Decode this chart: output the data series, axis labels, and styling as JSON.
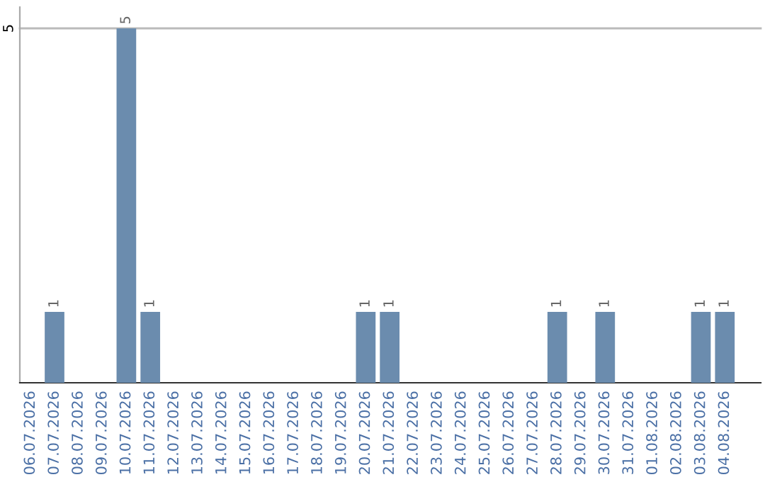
{
  "chart_data": {
    "type": "bar",
    "categories": [
      "06.07.2026",
      "07.07.2026",
      "08.07.2026",
      "09.07.2026",
      "10.07.2026",
      "11.07.2026",
      "12.07.2026",
      "13.07.2026",
      "14.07.2026",
      "15.07.2026",
      "16.07.2026",
      "17.07.2026",
      "18.07.2026",
      "19.07.2026",
      "20.07.2026",
      "21.07.2026",
      "22.07.2026",
      "23.07.2026",
      "24.07.2026",
      "25.07.2026",
      "26.07.2026",
      "27.07.2026",
      "28.07.2026",
      "29.07.2026",
      "30.07.2026",
      "31.07.2026",
      "01.08.2026",
      "02.08.2026",
      "03.08.2026",
      "04.08.2026"
    ],
    "values": [
      0,
      1,
      0,
      0,
      5,
      1,
      0,
      0,
      0,
      0,
      0,
      0,
      0,
      0,
      1,
      1,
      0,
      0,
      0,
      0,
      0,
      0,
      1,
      0,
      1,
      0,
      0,
      0,
      1,
      1
    ],
    "color": "#6b8cae",
    "value_labels": [
      null,
      "1",
      null,
      null,
      "5",
      "1",
      null,
      null,
      null,
      null,
      null,
      null,
      null,
      null,
      "1",
      "1",
      null,
      null,
      null,
      null,
      null,
      null,
      "1",
      null,
      "1",
      null,
      null,
      null,
      "1",
      "1"
    ],
    "ylim": [
      0,
      5.3
    ],
    "yticks": [
      5
    ],
    "grid": "y"
  }
}
